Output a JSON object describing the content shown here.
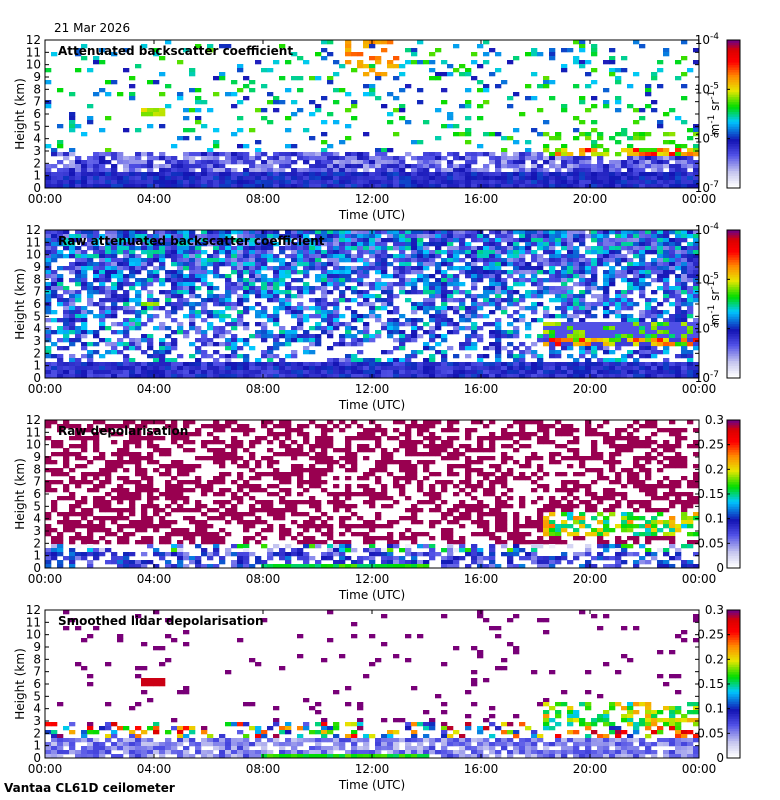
{
  "date": "21 Mar 2026",
  "footer": "Vantaa CL61D ceilometer",
  "colors": {
    "scale": [
      "#ffffff",
      "#c8c8f0",
      "#5050e6",
      "#1414b4",
      "#00c8ff",
      "#00dc00",
      "#e6e600",
      "#ff8c00",
      "#ff0000",
      "#dc0000",
      "#780078"
    ]
  },
  "chart_data": [
    {
      "type": "heatmap",
      "title": "Attenuated backscatter coefficient",
      "xlabel": "Time (UTC)",
      "ylabel": "Height (km)",
      "x_ticks": [
        "00:00",
        "04:00",
        "08:00",
        "12:00",
        "16:00",
        "20:00",
        "00:00"
      ],
      "y_ticks": [
        "0",
        "1",
        "2",
        "3",
        "4",
        "5",
        "6",
        "7",
        "8",
        "9",
        "10",
        "11",
        "12"
      ],
      "ylim": [
        0,
        12
      ],
      "xlim_hours": [
        0,
        24
      ],
      "colorbar": {
        "scale": "log",
        "ticks": [
          "10",
          "10",
          "10",
          "10"
        ],
        "exponents": [
          "-7",
          "-6",
          "-5",
          "-4"
        ],
        "unit": "m",
        "unit_exp": "-1",
        "unit2": "sr",
        "unit2_exp": "-1"
      },
      "features": [
        {
          "name": "boundary layer",
          "hours": [
            0,
            24
          ],
          "height_km": [
            0,
            3
          ],
          "level": 0.3
        },
        {
          "name": "elevated layer",
          "hours": [
            3.6,
            4.4
          ],
          "height_km": [
            5.8,
            6.5
          ],
          "level": 0.65
        },
        {
          "name": "mid-level cloud",
          "hours": [
            18.2,
            24
          ],
          "height_km": [
            2.5,
            5
          ],
          "level": 0.8
        }
      ]
    },
    {
      "type": "heatmap",
      "title": "Raw attenuated backscatter coefficient",
      "xlabel": "Time (UTC)",
      "ylabel": "Height (km)",
      "x_ticks": [
        "00:00",
        "04:00",
        "08:00",
        "12:00",
        "16:00",
        "20:00",
        "00:00"
      ],
      "y_ticks": [
        "0",
        "1",
        "2",
        "3",
        "4",
        "5",
        "6",
        "7",
        "8",
        "9",
        "10",
        "11",
        "12"
      ],
      "ylim": [
        0,
        12
      ],
      "xlim_hours": [
        0,
        24
      ],
      "colorbar": {
        "scale": "log",
        "ticks": [
          "10",
          "10",
          "10",
          "10"
        ],
        "exponents": [
          "-7",
          "-6",
          "-5",
          "-4"
        ],
        "unit": "m",
        "unit_exp": "-1",
        "unit2": "sr",
        "unit2_exp": "-1"
      },
      "features": [
        {
          "name": "noise",
          "hours": [
            0,
            24
          ],
          "height_km": [
            0,
            12
          ],
          "level": 0.4
        },
        {
          "name": "elevated layer",
          "hours": [
            3.6,
            4.2
          ],
          "height_km": [
            5.8,
            6.3
          ],
          "level": 0.65
        },
        {
          "name": "mid-level cloud",
          "hours": [
            18.2,
            24
          ],
          "height_km": [
            2.5,
            5
          ],
          "level": 0.8
        }
      ]
    },
    {
      "type": "heatmap",
      "title": "Raw depolarisation",
      "xlabel": "Time (UTC)",
      "ylabel": "Height (km)",
      "x_ticks": [
        "00:00",
        "04:00",
        "08:00",
        "12:00",
        "16:00",
        "20:00",
        "00:00"
      ],
      "y_ticks": [
        "0",
        "1",
        "2",
        "3",
        "4",
        "5",
        "6",
        "7",
        "8",
        "9",
        "10",
        "11",
        "12"
      ],
      "ylim": [
        0,
        12
      ],
      "xlim_hours": [
        0,
        24
      ],
      "colorbar": {
        "scale": "linear",
        "range": [
          0,
          0.3
        ],
        "ticks": [
          "0",
          "0.05",
          "0.1",
          "0.15",
          "0.2",
          "0.25",
          "0.3"
        ]
      },
      "features": [
        {
          "name": "noise",
          "hours": [
            0,
            24
          ],
          "height_km": [
            2,
            12
          ],
          "level": 1.0
        },
        {
          "name": "mid-level cloud",
          "hours": [
            18.2,
            24
          ],
          "height_km": [
            2.5,
            5
          ],
          "level": 0.75
        }
      ]
    },
    {
      "type": "heatmap",
      "title": "Smoothed lidar depolarisation",
      "xlabel": "Time (UTC)",
      "ylabel": "Height (km)",
      "x_ticks": [
        "00:00",
        "04:00",
        "08:00",
        "12:00",
        "16:00",
        "20:00",
        "00:00"
      ],
      "y_ticks": [
        "0",
        "1",
        "2",
        "3",
        "4",
        "5",
        "6",
        "7",
        "8",
        "9",
        "10",
        "11",
        "12"
      ],
      "ylim": [
        0,
        12
      ],
      "xlim_hours": [
        0,
        24
      ],
      "colorbar": {
        "scale": "linear",
        "range": [
          0,
          0.3
        ],
        "ticks": [
          "0",
          "0.05",
          "0.1",
          "0.15",
          "0.2",
          "0.25",
          "0.3"
        ]
      },
      "features": [
        {
          "name": "elevated layer",
          "hours": [
            3.6,
            4.4
          ],
          "height_km": [
            5.8,
            6.4
          ],
          "level": 1.0
        },
        {
          "name": "mid-level cloud",
          "hours": [
            18.2,
            24
          ],
          "height_km": [
            2.5,
            5
          ],
          "level": 0.75
        }
      ]
    }
  ]
}
